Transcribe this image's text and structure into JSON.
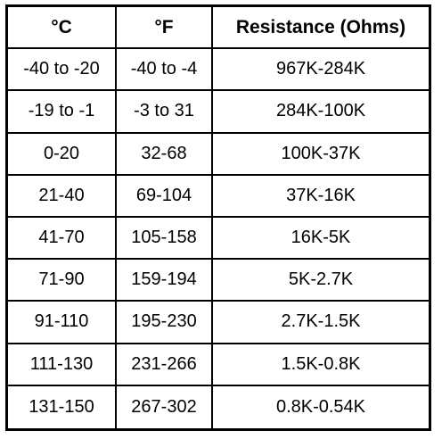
{
  "table": {
    "headers": [
      "°C",
      "°F",
      "Resistance (Ohms)"
    ],
    "rows": [
      [
        "-40 to -20",
        "-40 to -4",
        "967K-284K"
      ],
      [
        "-19 to -1",
        "-3 to 31",
        "284K-100K"
      ],
      [
        "0-20",
        "32-68",
        "100K-37K"
      ],
      [
        "21-40",
        "69-104",
        "37K-16K"
      ],
      [
        "41-70",
        "105-158",
        "16K-5K"
      ],
      [
        "71-90",
        "159-194",
        "5K-2.7K"
      ],
      [
        "91-110",
        "195-230",
        "2.7K-1.5K"
      ],
      [
        "111-130",
        "231-266",
        "1.5K-0.8K"
      ],
      [
        "131-150",
        "267-302",
        "0.8K-0.54K"
      ]
    ]
  }
}
